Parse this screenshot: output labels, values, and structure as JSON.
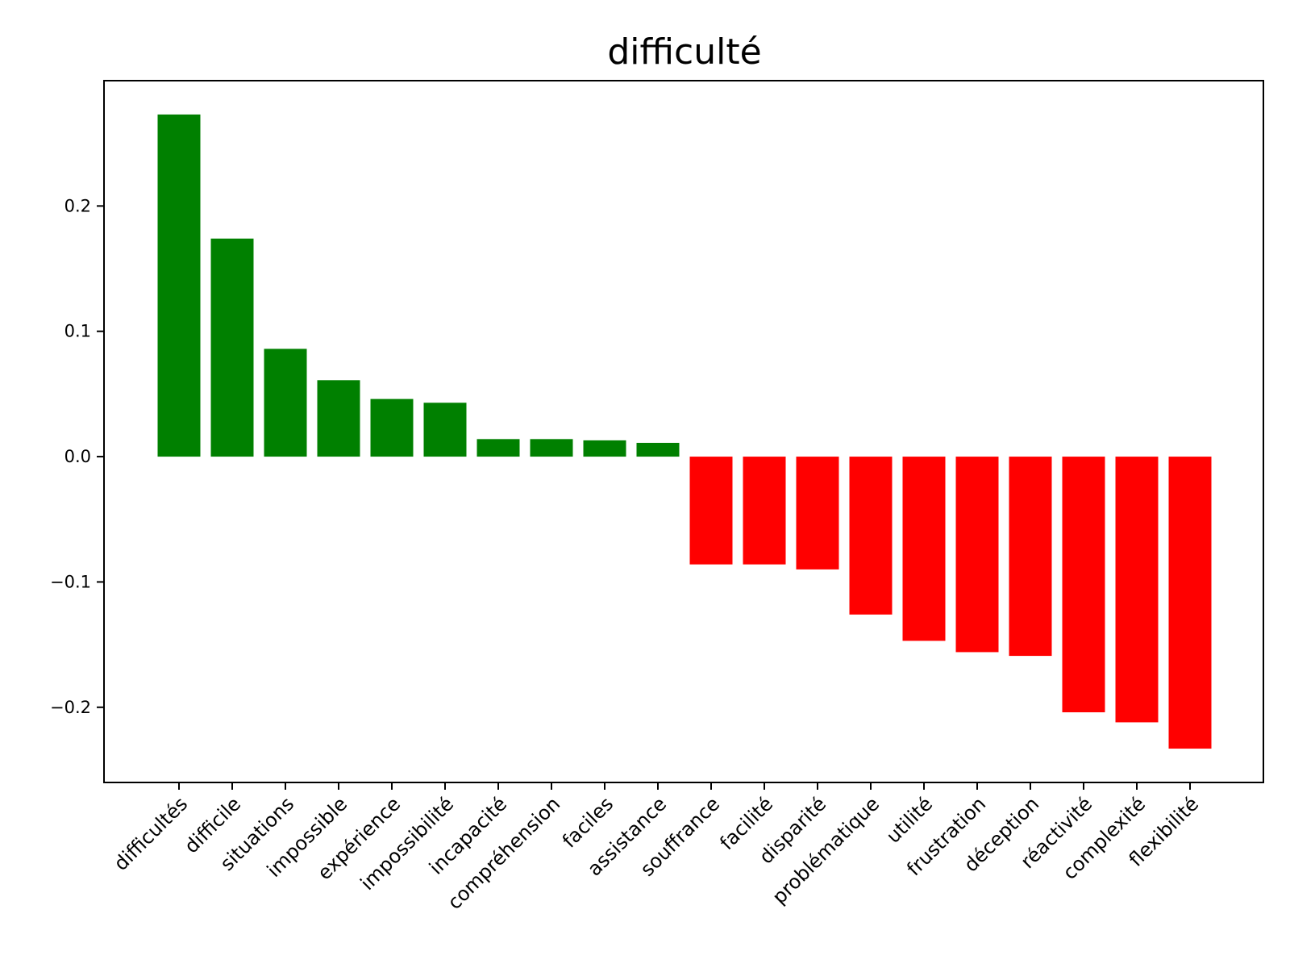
{
  "chart_data": {
    "type": "bar",
    "title": "difficulté",
    "xlabel": "",
    "ylabel": "",
    "ylim": [
      -0.26,
      0.3
    ],
    "y_ticks": [
      {
        "value": 0.2,
        "label": "0.2"
      },
      {
        "value": 0.1,
        "label": "0.1"
      },
      {
        "value": 0.0,
        "label": "0.0"
      },
      {
        "value": -0.1,
        "label": "−0.1"
      },
      {
        "value": -0.2,
        "label": "−0.2"
      }
    ],
    "grid": false,
    "x_tick_rotation_deg": 45,
    "colors": {
      "positive": "#008000",
      "negative": "#ff0000"
    },
    "categories": [
      "difficultés",
      "difficile",
      "situations",
      "impossible",
      "expérience",
      "impossibilité",
      "incapacité",
      "compréhension",
      "faciles",
      "assistance",
      "souffrance",
      "facilité",
      "disparité",
      "problématique",
      "utilité",
      "frustration",
      "déception",
      "réactivité",
      "complexité",
      "flexibilité"
    ],
    "values": [
      0.273,
      0.174,
      0.086,
      0.061,
      0.046,
      0.043,
      0.014,
      0.014,
      0.013,
      0.011,
      -0.086,
      -0.086,
      -0.09,
      -0.126,
      -0.147,
      -0.156,
      -0.159,
      -0.204,
      -0.212,
      -0.233
    ]
  }
}
